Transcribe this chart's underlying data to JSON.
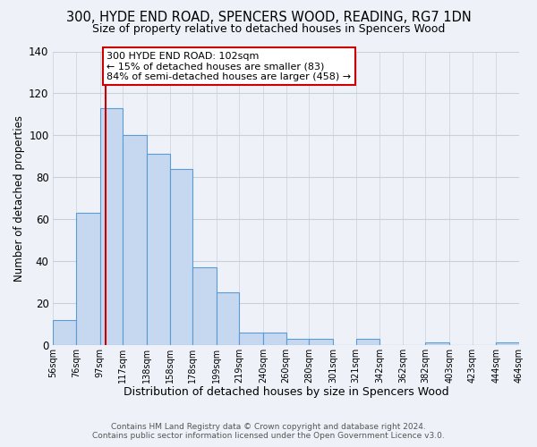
{
  "title": "300, HYDE END ROAD, SPENCERS WOOD, READING, RG7 1DN",
  "subtitle": "Size of property relative to detached houses in Spencers Wood",
  "xlabel": "Distribution of detached houses by size in Spencers Wood",
  "ylabel": "Number of detached properties",
  "footer_line1": "Contains HM Land Registry data © Crown copyright and database right 2024.",
  "footer_line2": "Contains public sector information licensed under the Open Government Licence v3.0.",
  "bin_edges": [
    56,
    76,
    97,
    117,
    138,
    158,
    178,
    199,
    219,
    240,
    260,
    280,
    301,
    321,
    342,
    362,
    382,
    403,
    423,
    444,
    464
  ],
  "bin_labels": [
    "56sqm",
    "76sqm",
    "97sqm",
    "117sqm",
    "138sqm",
    "158sqm",
    "178sqm",
    "199sqm",
    "219sqm",
    "240sqm",
    "260sqm",
    "280sqm",
    "301sqm",
    "321sqm",
    "342sqm",
    "362sqm",
    "382sqm",
    "403sqm",
    "423sqm",
    "444sqm",
    "464sqm"
  ],
  "bar_heights": [
    12,
    63,
    113,
    100,
    91,
    84,
    37,
    25,
    6,
    6,
    3,
    3,
    0,
    3,
    0,
    0,
    1,
    0,
    0,
    1
  ],
  "bar_color": "#c5d8f0",
  "bar_edge_color": "#5b9bd5",
  "vline_x": 102,
  "vline_color": "#cc0000",
  "annotation_title": "300 HYDE END ROAD: 102sqm",
  "annotation_line1": "← 15% of detached houses are smaller (83)",
  "annotation_line2": "84% of semi-detached houses are larger (458) →",
  "annotation_box_color": "#ffffff",
  "annotation_box_edge": "#cc0000",
  "ylim": [
    0,
    140
  ],
  "yticks": [
    0,
    20,
    40,
    60,
    80,
    100,
    120,
    140
  ],
  "bg_color": "#eef2f8",
  "grid_color": "#c8d0dc",
  "title_fontsize": 10.5,
  "subtitle_fontsize": 9.0,
  "xlabel_fontsize": 9.0,
  "ylabel_fontsize": 8.5
}
